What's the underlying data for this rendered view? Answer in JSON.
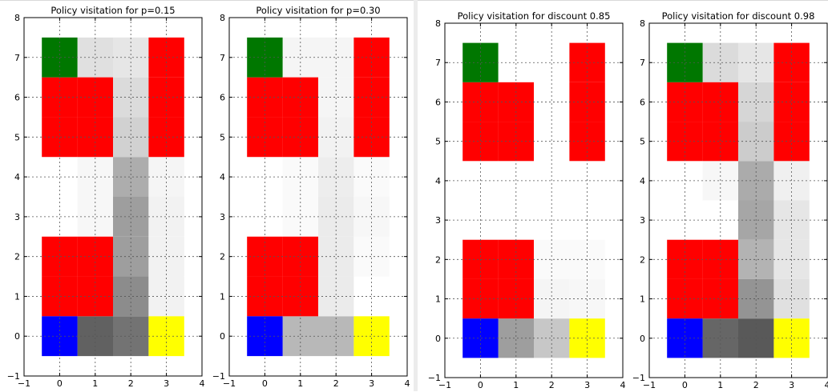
{
  "chart_data": [
    {
      "type": "heatmap",
      "title": "Policy visitation for p=0.15",
      "xlim": [
        -1,
        4
      ],
      "ylim": [
        -1,
        8
      ],
      "xticks": [
        -1,
        0,
        1,
        2,
        3,
        4
      ],
      "yticks": [
        -1,
        0,
        1,
        2,
        3,
        4,
        5,
        6,
        7,
        8
      ],
      "grid": true,
      "special_cells": {
        "start": [
          0,
          0
        ],
        "goal": [
          0,
          7
        ],
        "yellow": [
          3,
          0
        ]
      },
      "walls": [
        [
          0,
          1
        ],
        [
          1,
          1
        ],
        [
          0,
          2
        ],
        [
          1,
          2
        ],
        [
          0,
          5
        ],
        [
          1,
          5
        ],
        [
          0,
          6
        ],
        [
          1,
          6
        ],
        [
          3,
          5
        ],
        [
          3,
          6
        ],
        [
          3,
          7
        ]
      ],
      "visitation": [
        {
          "x": 1,
          "y": 0,
          "v": 0.62
        },
        {
          "x": 2,
          "y": 0,
          "v": 0.55
        },
        {
          "x": 2,
          "y": 1,
          "v": 0.45
        },
        {
          "x": 2,
          "y": 2,
          "v": 0.38
        },
        {
          "x": 2,
          "y": 3,
          "v": 0.38
        },
        {
          "x": 2,
          "y": 4,
          "v": 0.32
        },
        {
          "x": 2,
          "y": 5,
          "v": 0.18
        },
        {
          "x": 2,
          "y": 6,
          "v": 0.14
        },
        {
          "x": 2,
          "y": 7,
          "v": 0.1
        },
        {
          "x": 1,
          "y": 7,
          "v": 0.12
        },
        {
          "x": 3,
          "y": 1,
          "v": 0.05
        },
        {
          "x": 3,
          "y": 2,
          "v": 0.05
        },
        {
          "x": 3,
          "y": 3,
          "v": 0.05
        },
        {
          "x": 3,
          "y": 4,
          "v": 0.04
        },
        {
          "x": 1,
          "y": 3,
          "v": 0.03
        },
        {
          "x": 1,
          "y": 4,
          "v": 0.03
        }
      ]
    },
    {
      "type": "heatmap",
      "title": "Policy visitation for p=0.30",
      "xlim": [
        -1,
        4
      ],
      "ylim": [
        -1,
        8
      ],
      "xticks": [
        -1,
        0,
        1,
        2,
        3,
        4
      ],
      "yticks": [
        -1,
        0,
        1,
        2,
        3,
        4,
        5,
        6,
        7,
        8
      ],
      "grid": true,
      "special_cells": {
        "start": [
          0,
          0
        ],
        "goal": [
          0,
          7
        ],
        "yellow": [
          3,
          0
        ]
      },
      "walls": [
        [
          0,
          1
        ],
        [
          1,
          1
        ],
        [
          0,
          2
        ],
        [
          1,
          2
        ],
        [
          0,
          5
        ],
        [
          1,
          5
        ],
        [
          0,
          6
        ],
        [
          1,
          6
        ],
        [
          3,
          5
        ],
        [
          3,
          6
        ],
        [
          3,
          7
        ]
      ],
      "visitation": [
        {
          "x": 1,
          "y": 0,
          "v": 0.28
        },
        {
          "x": 2,
          "y": 0,
          "v": 0.28
        },
        {
          "x": 2,
          "y": 1,
          "v": 0.08
        },
        {
          "x": 2,
          "y": 2,
          "v": 0.08
        },
        {
          "x": 2,
          "y": 3,
          "v": 0.08
        },
        {
          "x": 2,
          "y": 4,
          "v": 0.07
        },
        {
          "x": 2,
          "y": 5,
          "v": 0.05
        },
        {
          "x": 2,
          "y": 6,
          "v": 0.04
        },
        {
          "x": 2,
          "y": 7,
          "v": 0.04
        },
        {
          "x": 1,
          "y": 7,
          "v": 0.04
        },
        {
          "x": 1,
          "y": 3,
          "v": 0.02
        },
        {
          "x": 1,
          "y": 4,
          "v": 0.02
        },
        {
          "x": 3,
          "y": 2,
          "v": 0.02
        },
        {
          "x": 3,
          "y": 3,
          "v": 0.03
        },
        {
          "x": 3,
          "y": 4,
          "v": 0.02
        }
      ]
    },
    {
      "type": "heatmap",
      "title": "Policy visitation for discount 0.85",
      "xlim": [
        -1,
        4
      ],
      "ylim": [
        -1,
        8
      ],
      "xticks": [
        -1,
        0,
        1,
        2,
        3,
        4
      ],
      "yticks": [
        -1,
        0,
        1,
        2,
        3,
        4,
        5,
        6,
        7,
        8
      ],
      "grid": true,
      "special_cells": {
        "start": [
          0,
          0
        ],
        "goal": [
          0,
          7
        ],
        "yellow": [
          3,
          0
        ]
      },
      "walls": [
        [
          0,
          1
        ],
        [
          1,
          1
        ],
        [
          0,
          2
        ],
        [
          1,
          2
        ],
        [
          0,
          5
        ],
        [
          1,
          5
        ],
        [
          0,
          6
        ],
        [
          1,
          6
        ],
        [
          3,
          5
        ],
        [
          3,
          6
        ],
        [
          3,
          7
        ]
      ],
      "visitation": [
        {
          "x": 1,
          "y": 0,
          "v": 0.38
        },
        {
          "x": 2,
          "y": 0,
          "v": 0.22
        },
        {
          "x": 2,
          "y": 1,
          "v": 0.04
        },
        {
          "x": 3,
          "y": 1,
          "v": 0.03
        },
        {
          "x": 2,
          "y": 2,
          "v": 0.02
        },
        {
          "x": 3,
          "y": 2,
          "v": 0.02
        }
      ]
    },
    {
      "type": "heatmap",
      "title": "Policy visitation for discount 0.98",
      "xlim": [
        -1,
        4
      ],
      "ylim": [
        -1,
        8
      ],
      "xticks": [
        -1,
        0,
        1,
        2,
        3,
        4
      ],
      "yticks": [
        -1,
        0,
        1,
        2,
        3,
        4,
        5,
        6,
        7,
        8
      ],
      "grid": true,
      "special_cells": {
        "start": [
          0,
          0
        ],
        "goal": [
          0,
          7
        ],
        "yellow": [
          3,
          0
        ]
      },
      "walls": [
        [
          0,
          1
        ],
        [
          1,
          1
        ],
        [
          0,
          2
        ],
        [
          1,
          2
        ],
        [
          0,
          5
        ],
        [
          1,
          5
        ],
        [
          0,
          6
        ],
        [
          1,
          6
        ],
        [
          3,
          5
        ],
        [
          3,
          6
        ],
        [
          3,
          7
        ]
      ],
      "visitation": [
        {
          "x": 1,
          "y": 0,
          "v": 0.6
        },
        {
          "x": 2,
          "y": 0,
          "v": 0.65
        },
        {
          "x": 2,
          "y": 1,
          "v": 0.42
        },
        {
          "x": 2,
          "y": 2,
          "v": 0.3
        },
        {
          "x": 2,
          "y": 3,
          "v": 0.35
        },
        {
          "x": 2,
          "y": 4,
          "v": 0.33
        },
        {
          "x": 2,
          "y": 5,
          "v": 0.2
        },
        {
          "x": 2,
          "y": 6,
          "v": 0.16
        },
        {
          "x": 2,
          "y": 7,
          "v": 0.1
        },
        {
          "x": 1,
          "y": 7,
          "v": 0.14
        },
        {
          "x": 3,
          "y": 1,
          "v": 0.12
        },
        {
          "x": 3,
          "y": 2,
          "v": 0.1
        },
        {
          "x": 3,
          "y": 3,
          "v": 0.1
        },
        {
          "x": 3,
          "y": 4,
          "v": 0.06
        },
        {
          "x": 1,
          "y": 4,
          "v": 0.03
        }
      ]
    }
  ],
  "colors": {
    "start": "#0000ff",
    "goal": "#007700",
    "wall": "#ff0000",
    "yellow": "#ffff00",
    "grid": "#555555"
  }
}
